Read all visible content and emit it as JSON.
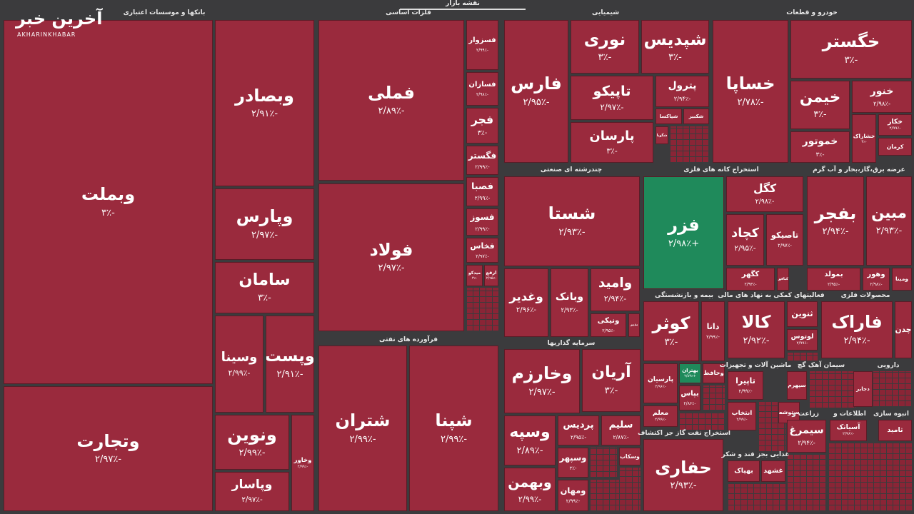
{
  "header": {
    "title": "نقشه بازار",
    "logo": "آخرین خبر",
    "logo_sub": "AKHARINKHABAR"
  },
  "sectors": [
    {
      "title": "بانکها و موسسات اعتباری",
      "tiles": [
        {
          "name": "وبملت",
          "change": "-۳٪"
        },
        {
          "name": "وتجارت",
          "change": "-۲/۹۷٪"
        },
        {
          "name": "وبصادر",
          "change": "-۲/۹۱٪"
        },
        {
          "name": "وپارس",
          "change": "-۲/۹۷٪"
        },
        {
          "name": "سامان",
          "change": "-۳٪"
        },
        {
          "name": "وسینا",
          "change": "-۲/۹۹٪"
        },
        {
          "name": "وپست",
          "change": "-۲/۹۱٪"
        },
        {
          "name": "ونوین",
          "change": "-۲/۹۹٪"
        },
        {
          "name": "وپاسار",
          "change": "-۲/۹۷٪"
        },
        {
          "name": "وخاور",
          "change": "-۲/۹۹٪"
        }
      ]
    },
    {
      "title": "فلزات اساسی",
      "tiles": [
        {
          "name": "فملی",
          "change": "-۲/۸۹٪"
        },
        {
          "name": "فولاد",
          "change": "-۲/۹۷٪"
        },
        {
          "name": "فسزوار",
          "change": "-۲/۹۹٪"
        },
        {
          "name": "فسازان",
          "change": "-۲/۹۸٪"
        },
        {
          "name": "فجر",
          "change": "-۳٪"
        },
        {
          "name": "فگستر",
          "change": "-۲/۹۹٪"
        },
        {
          "name": "فصبا",
          "change": "-۲/۹۹٪"
        },
        {
          "name": "فسوز",
          "change": "-۲/۹۹٪"
        },
        {
          "name": "فخاس",
          "change": "-۲/۹۷٪"
        },
        {
          "name": "میدکو",
          "change": "-۳٪"
        },
        {
          "name": "ارفع",
          "change": "-۲/۹۵٪"
        }
      ]
    },
    {
      "title": "فرآورده های نفتی",
      "tiles": [
        {
          "name": "شتران",
          "change": "-۲/۹۹٪"
        },
        {
          "name": "شپنا",
          "change": "-۲/۹۹٪"
        }
      ]
    },
    {
      "title": "شیمیایی",
      "tiles": [
        {
          "name": "فارس",
          "change": "-۲/۹۵٪"
        },
        {
          "name": "نوری",
          "change": "-۳٪"
        },
        {
          "name": "شپدیس",
          "change": "-۳٪"
        },
        {
          "name": "تاپیکو",
          "change": "-۲/۹۷٪"
        },
        {
          "name": "پترول",
          "change": "-۲/۹۴٪"
        },
        {
          "name": "پارسان",
          "change": "-۳٪"
        },
        {
          "name": "شپاکسا"
        },
        {
          "name": "شکبیر"
        },
        {
          "name": "شگویا"
        }
      ]
    },
    {
      "title": "خودرو و قطعات",
      "tiles": [
        {
          "name": "خساپا",
          "change": "-۲/۷۸٪"
        },
        {
          "name": "خگستر",
          "change": "-۳٪"
        },
        {
          "name": "خیمن",
          "change": "-۳٪"
        },
        {
          "name": "خموتور",
          "change": "-۳٪"
        },
        {
          "name": "خنور",
          "change": "-۲/۹۸٪"
        },
        {
          "name": "خشاراک",
          "change": "-۳٪"
        },
        {
          "name": "خکار",
          "change": "-۲/۹۹٪"
        },
        {
          "name": "کرمان"
        }
      ]
    },
    {
      "title": "چندرشته ای صنعتی",
      "tiles": [
        {
          "name": "شستا",
          "change": "-۲/۹۳٪"
        },
        {
          "name": "وغدیر",
          "change": "-۲/۹۶٪"
        },
        {
          "name": "وبانک",
          "change": "-۲/۹۳٪"
        },
        {
          "name": "وامید",
          "change": "-۲/۹۴٪"
        },
        {
          "name": "ونیکی",
          "change": "-۲/۹۵٪"
        },
        {
          "name": "بدیر"
        }
      ]
    },
    {
      "title": "استخراج کانه های فلزی",
      "tiles": [
        {
          "name": "فزر",
          "change": "+۲/۹۸٪",
          "color": "#1f8a5b"
        },
        {
          "name": "کگل",
          "change": "-۲/۹۸٪"
        },
        {
          "name": "کچاد",
          "change": "-۲/۹۵٪"
        },
        {
          "name": "تاصیکو",
          "change": "-۲/۹۷٪"
        },
        {
          "name": "کگهر",
          "change": "-۲/۹۳٪"
        },
        {
          "name": "کبافق"
        }
      ]
    },
    {
      "title": "عرضه برق،گاز،بخار و آب گرم",
      "tiles": [
        {
          "name": "بفجر",
          "change": "-۲/۹۴٪"
        },
        {
          "name": "مبین",
          "change": "-۲/۹۳٪"
        },
        {
          "name": "بمولد",
          "change": "-۲/۹۵٪"
        },
        {
          "name": "وهور",
          "change": "-۲/۹۸٪"
        },
        {
          "name": "ومینا"
        }
      ]
    },
    {
      "title": "سرمایه گذاریها",
      "tiles": [
        {
          "name": "آریان",
          "change": "-۳٪"
        },
        {
          "name": "وخارزم",
          "change": "-۲/۹۷٪"
        },
        {
          "name": "وسپه",
          "change": "-۲/۸۹٪"
        },
        {
          "name": "وبهمن",
          "change": "-۲/۹۹٪"
        },
        {
          "name": "پردیس",
          "change": "-۲/۹۵٪"
        },
        {
          "name": "سلیم",
          "change": "-۲/۸۷٪"
        },
        {
          "name": "وسپهر",
          "change": "-۳٪"
        },
        {
          "name": "وسکاب"
        },
        {
          "name": "ومهان",
          "change": "-۲/۹۹٪"
        }
      ]
    },
    {
      "title": "بیمه و بازنشستگی",
      "tiles": [
        {
          "name": "کوثر",
          "change": "-۳٪"
        },
        {
          "name": "دانا",
          "change": "-۲/۹۹٪"
        },
        {
          "name": "پارسیان",
          "change": "-۲/۹۶٪"
        },
        {
          "name": "بهتران",
          "change": "+۲/۸۳٪",
          "color": "#1f8a5b"
        },
        {
          "name": "معلم",
          "change": "-۲/۹۹٪"
        },
        {
          "name": "وحافظ"
        },
        {
          "name": "بپاس",
          "change": "-۲/۸۶٪"
        }
      ]
    },
    {
      "title": "استخراج نفت گاز جز اکتشاف",
      "tiles": [
        {
          "name": "حفاری",
          "change": "-۲/۹۳٪"
        }
      ]
    },
    {
      "title": "فعالیتهای کمکی به نهاد های مالی",
      "tiles": [
        {
          "name": "کالا",
          "change": "-۲/۹۲٪"
        },
        {
          "name": "ثنوین"
        },
        {
          "name": "لوتوس",
          "change": "-۲/۹۹٪"
        }
      ]
    },
    {
      "title": "محصولات فلزی",
      "tiles": [
        {
          "name": "فاراک",
          "change": "-۲/۹۴٪"
        },
        {
          "name": "چدن"
        }
      ]
    },
    {
      "title": "ماشین آلات و تجهیزات",
      "tiles": [
        {
          "name": "تاپیرا",
          "change": "-۲/۹۹٪"
        },
        {
          "name": "انتخاب",
          "change": "-۲/۹۹٪"
        }
      ]
    },
    {
      "title": "سیمان آهک گچ",
      "tiles": [
        {
          "name": "سپهرم"
        },
        {
          "name": "ستوشه"
        }
      ]
    },
    {
      "title": "دارویی",
      "tiles": [
        {
          "name": "دجابر"
        }
      ]
    },
    {
      "title": "غذایی بجز قند و شکر",
      "tiles": [
        {
          "name": "بهپاک"
        },
        {
          "name": "غشهد"
        }
      ]
    },
    {
      "title": "زراعت و",
      "tiles": [
        {
          "name": "سیمرغ",
          "change": "-۲/۹۴٪"
        }
      ]
    },
    {
      "title": "اطلاعات و",
      "tiles": [
        {
          "name": "آسیاتک",
          "change": "-۲/۹۶٪"
        }
      ]
    },
    {
      "title": "انبوه سازی",
      "tiles": [
        {
          "name": "ثامید"
        }
      ]
    }
  ]
}
